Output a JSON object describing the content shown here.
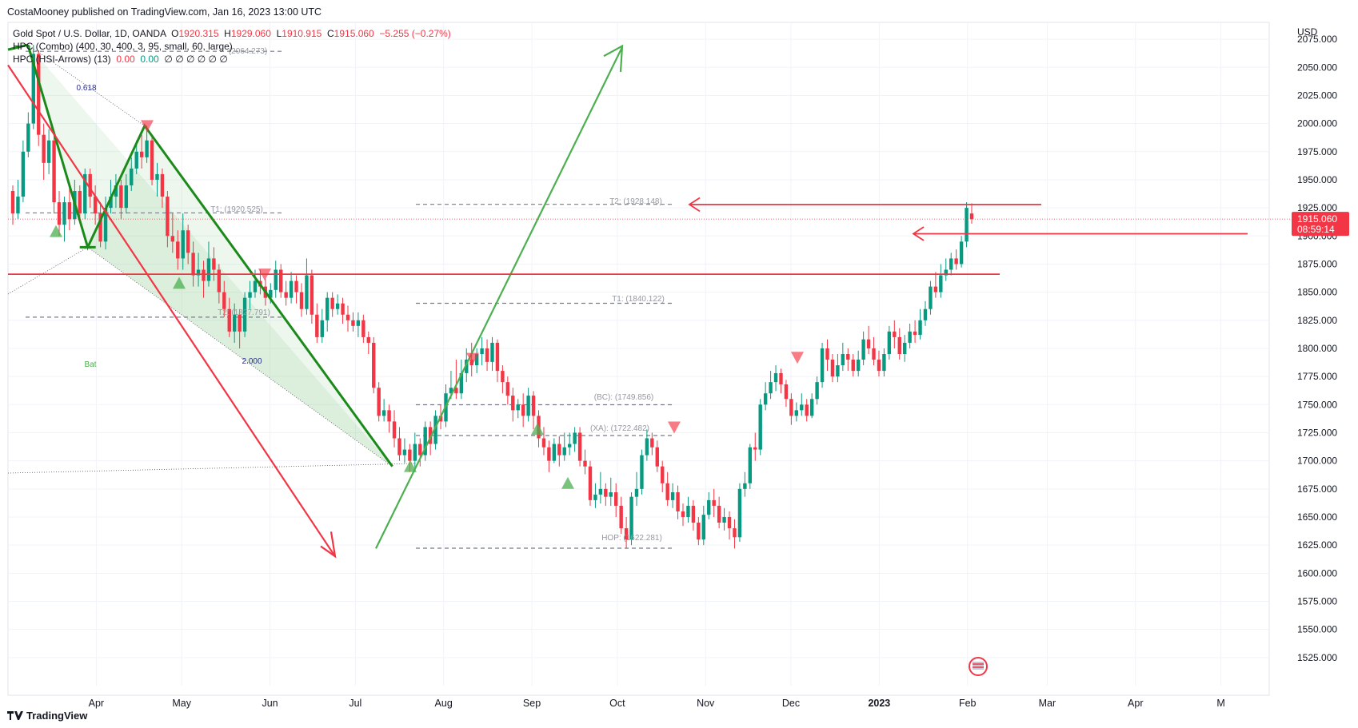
{
  "header": {
    "published_by": "CostaMooney published on TradingView.com, Jan 16, 2023 13:00 UTC"
  },
  "legend": {
    "symbol": "Gold Spot / U.S. Dollar, 1D, OANDA",
    "o_label": "O",
    "o_value": "1920.315",
    "h_label": "H",
    "h_value": "1929.060",
    "l_label": "L",
    "l_value": "1910.915",
    "c_label": "C",
    "c_value": "1915.060",
    "change": "−5.255 (−0.27%)",
    "indicator1": "HPC (Combo) (400, 30, 400, 3, 95, small, 60, large)",
    "indicator2_name": "HPC (HSI-Arrows) (13)",
    "indicator2_v1": "0.00",
    "indicator2_v2": "0.00",
    "indicator2_rest": "∅ ∅ ∅ ∅ ∅ ∅"
  },
  "footer": {
    "brand": "TradingView"
  },
  "colors": {
    "up": "#089981",
    "down": "#f23645",
    "green_line": "#4caf50",
    "dark_green": "#1b8a1b",
    "red_line": "#f23645"
  },
  "chart_data": {
    "type": "candlestick",
    "currency": "USD",
    "ylim": [
      1500,
      2090
    ],
    "y_ticks": [
      "2075.000",
      "2050.000",
      "2025.000",
      "2000.000",
      "1975.000",
      "1950.000",
      "1925.000",
      "1900.000",
      "1875.000",
      "1850.000",
      "1825.000",
      "1800.000",
      "1775.000",
      "1750.000",
      "1725.000",
      "1700.000",
      "1675.000",
      "1650.000",
      "1625.000",
      "1600.000",
      "1575.000",
      "1550.000",
      "1525.000"
    ],
    "x_ticks": [
      "Apr",
      "May",
      "Jun",
      "Jul",
      "Aug",
      "Sep",
      "Oct",
      "Nov",
      "Dec",
      "2023",
      "Feb",
      "Mar",
      "Apr",
      "M"
    ],
    "last_price": "1915.060",
    "countdown": "08:59:14",
    "last_price_value": 1915.06,
    "pattern_labels": {
      "pattern_name": "Bat",
      "ratio_618": "0.618",
      "ratio_2000": "2.000",
      "t1_left": "T1: (1920.525)",
      "t2_left": "T2: (1827.791)",
      "top_level": "(2064.273)",
      "t2_right": "T2: (1928.148)",
      "t1_right": "T1: (1840.122)",
      "bc": "(BC): (1749.856)",
      "xa": "(XA): (1722.482)",
      "hop": "HOP: (1622.281)"
    },
    "bat_pattern_points": [
      {
        "date": "2022-03-08",
        "price": 2070
      },
      {
        "date": "2022-03-29",
        "price": 1890
      },
      {
        "date": "2022-04-18",
        "price": 1998
      },
      {
        "date": "2022-07-14",
        "price": 1695
      }
    ],
    "horizontal_levels": [
      {
        "name": "red-support",
        "price": 1866
      },
      {
        "name": "target-line-1",
        "price": 1928
      },
      {
        "name": "target-line-2",
        "price": 1902
      }
    ],
    "candles": [
      [
        1940,
        1920,
        1945,
        1910
      ],
      [
        1920,
        1935,
        1950,
        1915
      ],
      [
        1935,
        1975,
        1985,
        1930
      ],
      [
        1975,
        2000,
        2010,
        1970
      ],
      [
        2000,
        2062,
        2070,
        1995
      ],
      [
        2062,
        1990,
        2065,
        1980
      ],
      [
        1990,
        1965,
        2000,
        1950
      ],
      [
        1965,
        1985,
        1995,
        1955
      ],
      [
        1985,
        1930,
        1990,
        1920
      ],
      [
        1930,
        1910,
        1940,
        1900
      ],
      [
        1910,
        1930,
        1935,
        1895
      ],
      [
        1930,
        1915,
        1945,
        1905
      ],
      [
        1915,
        1940,
        1950,
        1910
      ],
      [
        1940,
        1920,
        1945,
        1912
      ],
      [
        1920,
        1955,
        1960,
        1915
      ],
      [
        1955,
        1935,
        1960,
        1925
      ],
      [
        1935,
        1920,
        1945,
        1910
      ],
      [
        1920,
        1895,
        1930,
        1890
      ],
      [
        1895,
        1925,
        1935,
        1888
      ],
      [
        1925,
        1935,
        1950,
        1920
      ],
      [
        1935,
        1945,
        1955,
        1925
      ],
      [
        1945,
        1925,
        1950,
        1915
      ],
      [
        1925,
        1945,
        1955,
        1920
      ],
      [
        1945,
        1960,
        1970,
        1940
      ],
      [
        1960,
        1975,
        1985,
        1955
      ],
      [
        1975,
        1970,
        1990,
        1960
      ],
      [
        1970,
        1985,
        1998,
        1965
      ],
      [
        1985,
        1950,
        1990,
        1945
      ],
      [
        1950,
        1955,
        1965,
        1935
      ],
      [
        1955,
        1935,
        1960,
        1925
      ],
      [
        1935,
        1900,
        1940,
        1890
      ],
      [
        1900,
        1895,
        1920,
        1885
      ],
      [
        1895,
        1880,
        1905,
        1870
      ],
      [
        1880,
        1905,
        1920,
        1870
      ],
      [
        1905,
        1885,
        1910,
        1875
      ],
      [
        1885,
        1865,
        1895,
        1855
      ],
      [
        1865,
        1870,
        1885,
        1855
      ],
      [
        1870,
        1860,
        1878,
        1845
      ],
      [
        1860,
        1880,
        1895,
        1855
      ],
      [
        1880,
        1870,
        1890,
        1860
      ],
      [
        1870,
        1850,
        1875,
        1840
      ],
      [
        1850,
        1835,
        1860,
        1828
      ],
      [
        1835,
        1815,
        1845,
        1810
      ],
      [
        1815,
        1830,
        1840,
        1805
      ],
      [
        1830,
        1815,
        1835,
        1800
      ],
      [
        1815,
        1845,
        1850,
        1810
      ],
      [
        1845,
        1850,
        1860,
        1835
      ],
      [
        1850,
        1860,
        1870,
        1845
      ],
      [
        1860,
        1855,
        1870,
        1848
      ],
      [
        1855,
        1845,
        1862,
        1838
      ],
      [
        1845,
        1852,
        1858,
        1840
      ],
      [
        1852,
        1870,
        1878,
        1845
      ],
      [
        1870,
        1850,
        1875,
        1845
      ],
      [
        1850,
        1845,
        1860,
        1838
      ],
      [
        1845,
        1860,
        1868,
        1840
      ],
      [
        1860,
        1850,
        1865,
        1840
      ],
      [
        1850,
        1835,
        1858,
        1828
      ],
      [
        1835,
        1865,
        1880,
        1830
      ],
      [
        1865,
        1830,
        1870,
        1822
      ],
      [
        1830,
        1810,
        1840,
        1805
      ],
      [
        1810,
        1825,
        1835,
        1805
      ],
      [
        1825,
        1845,
        1850,
        1815
      ],
      [
        1845,
        1835,
        1850,
        1828
      ],
      [
        1835,
        1840,
        1848,
        1830
      ],
      [
        1840,
        1830,
        1845,
        1822
      ],
      [
        1830,
        1825,
        1838,
        1815
      ],
      [
        1825,
        1820,
        1832,
        1815
      ],
      [
        1820,
        1825,
        1832,
        1810
      ],
      [
        1825,
        1810,
        1830,
        1805
      ],
      [
        1810,
        1805,
        1815,
        1795
      ],
      [
        1805,
        1765,
        1810,
        1760
      ],
      [
        1765,
        1740,
        1770,
        1735
      ],
      [
        1740,
        1745,
        1755,
        1735
      ],
      [
        1745,
        1735,
        1750,
        1725
      ],
      [
        1735,
        1720,
        1745,
        1712
      ],
      [
        1720,
        1705,
        1730,
        1700
      ],
      [
        1705,
        1710,
        1720,
        1698
      ],
      [
        1710,
        1700,
        1715,
        1690
      ],
      [
        1700,
        1715,
        1725,
        1690
      ],
      [
        1715,
        1705,
        1720,
        1695
      ],
      [
        1705,
        1730,
        1735,
        1700
      ],
      [
        1730,
        1715,
        1735,
        1705
      ],
      [
        1715,
        1740,
        1745,
        1710
      ],
      [
        1740,
        1735,
        1750,
        1728
      ],
      [
        1735,
        1760,
        1768,
        1730
      ],
      [
        1760,
        1765,
        1780,
        1755
      ],
      [
        1765,
        1760,
        1790,
        1755
      ],
      [
        1760,
        1778,
        1790,
        1755
      ],
      [
        1778,
        1790,
        1800,
        1770
      ],
      [
        1790,
        1785,
        1805,
        1775
      ],
      [
        1785,
        1795,
        1800,
        1778
      ],
      [
        1795,
        1800,
        1810,
        1785
      ],
      [
        1800,
        1788,
        1808,
        1780
      ],
      [
        1788,
        1805,
        1810,
        1780
      ],
      [
        1805,
        1780,
        1808,
        1770
      ],
      [
        1780,
        1770,
        1785,
        1760
      ],
      [
        1770,
        1758,
        1775,
        1750
      ],
      [
        1758,
        1745,
        1765,
        1735
      ],
      [
        1745,
        1750,
        1755,
        1738
      ],
      [
        1750,
        1740,
        1760,
        1730
      ],
      [
        1740,
        1758,
        1765,
        1735
      ],
      [
        1758,
        1740,
        1762,
        1728
      ],
      [
        1740,
        1720,
        1745,
        1712
      ],
      [
        1720,
        1712,
        1730,
        1705
      ],
      [
        1712,
        1700,
        1718,
        1690
      ],
      [
        1700,
        1715,
        1720,
        1698
      ],
      [
        1715,
        1705,
        1722,
        1695
      ],
      [
        1705,
        1712,
        1725,
        1700
      ],
      [
        1712,
        1715,
        1725,
        1705
      ],
      [
        1715,
        1725,
        1730,
        1708
      ],
      [
        1725,
        1700,
        1730,
        1695
      ],
      [
        1700,
        1695,
        1710,
        1688
      ],
      [
        1695,
        1665,
        1700,
        1660
      ],
      [
        1665,
        1670,
        1680,
        1658
      ],
      [
        1670,
        1675,
        1690,
        1662
      ],
      [
        1675,
        1668,
        1680,
        1660
      ],
      [
        1668,
        1672,
        1685,
        1660
      ],
      [
        1672,
        1660,
        1680,
        1650
      ],
      [
        1660,
        1640,
        1668,
        1635
      ],
      [
        1640,
        1630,
        1650,
        1622
      ],
      [
        1630,
        1668,
        1672,
        1625
      ],
      [
        1668,
        1675,
        1690,
        1660
      ],
      [
        1675,
        1705,
        1710,
        1670
      ],
      [
        1705,
        1720,
        1728,
        1700
      ],
      [
        1720,
        1712,
        1725,
        1705
      ],
      [
        1712,
        1695,
        1718,
        1690
      ],
      [
        1695,
        1680,
        1700,
        1672
      ],
      [
        1680,
        1665,
        1690,
        1660
      ],
      [
        1665,
        1672,
        1680,
        1658
      ],
      [
        1672,
        1655,
        1678,
        1648
      ],
      [
        1655,
        1650,
        1662,
        1642
      ],
      [
        1650,
        1660,
        1668,
        1645
      ],
      [
        1660,
        1645,
        1665,
        1638
      ],
      [
        1645,
        1630,
        1650,
        1625
      ],
      [
        1630,
        1652,
        1660,
        1625
      ],
      [
        1652,
        1665,
        1672,
        1648
      ],
      [
        1665,
        1660,
        1675,
        1650
      ],
      [
        1660,
        1645,
        1668,
        1640
      ],
      [
        1645,
        1650,
        1658,
        1638
      ],
      [
        1650,
        1640,
        1655,
        1630
      ],
      [
        1640,
        1632,
        1648,
        1622
      ],
      [
        1632,
        1675,
        1680,
        1628
      ],
      [
        1675,
        1680,
        1690,
        1668
      ],
      [
        1680,
        1712,
        1715,
        1675
      ],
      [
        1712,
        1710,
        1725,
        1700
      ],
      [
        1710,
        1750,
        1755,
        1705
      ],
      [
        1750,
        1760,
        1770,
        1745
      ],
      [
        1760,
        1770,
        1780,
        1755
      ],
      [
        1770,
        1778,
        1785,
        1762
      ],
      [
        1778,
        1768,
        1782,
        1760
      ],
      [
        1768,
        1755,
        1772,
        1748
      ],
      [
        1755,
        1740,
        1760,
        1732
      ],
      [
        1740,
        1745,
        1752,
        1735
      ],
      [
        1745,
        1750,
        1760,
        1740
      ],
      [
        1750,
        1740,
        1755,
        1735
      ],
      [
        1740,
        1755,
        1760,
        1738
      ],
      [
        1755,
        1770,
        1775,
        1750
      ],
      [
        1770,
        1800,
        1805,
        1765
      ],
      [
        1800,
        1790,
        1808,
        1780
      ],
      [
        1790,
        1775,
        1795,
        1770
      ],
      [
        1775,
        1785,
        1795,
        1770
      ],
      [
        1785,
        1795,
        1805,
        1780
      ],
      [
        1795,
        1790,
        1800,
        1780
      ],
      [
        1790,
        1780,
        1795,
        1775
      ],
      [
        1780,
        1790,
        1798,
        1775
      ],
      [
        1790,
        1808,
        1815,
        1785
      ],
      [
        1808,
        1800,
        1820,
        1795
      ],
      [
        1800,
        1790,
        1810,
        1785
      ],
      [
        1790,
        1780,
        1798,
        1775
      ],
      [
        1780,
        1795,
        1800,
        1775
      ],
      [
        1795,
        1815,
        1820,
        1790
      ],
      [
        1815,
        1810,
        1825,
        1800
      ],
      [
        1810,
        1795,
        1818,
        1790
      ],
      [
        1795,
        1805,
        1812,
        1788
      ],
      [
        1805,
        1815,
        1822,
        1800
      ],
      [
        1815,
        1812,
        1825,
        1805
      ],
      [
        1812,
        1825,
        1835,
        1808
      ],
      [
        1825,
        1835,
        1842,
        1820
      ],
      [
        1835,
        1855,
        1860,
        1830
      ],
      [
        1855,
        1850,
        1868,
        1845
      ],
      [
        1850,
        1865,
        1875,
        1845
      ],
      [
        1865,
        1870,
        1880,
        1860
      ],
      [
        1870,
        1880,
        1885,
        1865
      ],
      [
        1880,
        1875,
        1888,
        1870
      ],
      [
        1875,
        1895,
        1900,
        1872
      ],
      [
        1895,
        1925,
        1930,
        1890
      ],
      [
        1920,
        1915,
        1929,
        1911
      ]
    ]
  }
}
